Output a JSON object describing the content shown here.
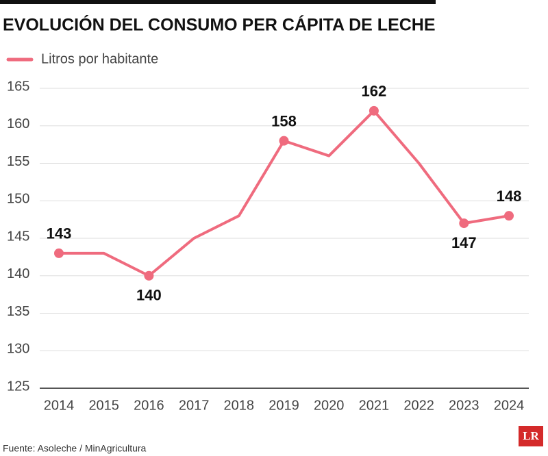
{
  "chart_data": {
    "type": "line",
    "title": "EVOLUCIÓN DEL CONSUMO PER CÁPITA DE LECHE",
    "categories": [
      "2014",
      "2015",
      "2016",
      "2017",
      "2018",
      "2019",
      "2020",
      "2021",
      "2022",
      "2023",
      "2024"
    ],
    "series": [
      {
        "name": "Litros por habitante",
        "color": "#ef6b7e",
        "values": [
          143,
          143,
          140,
          145,
          148,
          158,
          156,
          162,
          155,
          147,
          148
        ],
        "value_labels": [
          "143",
          null,
          "140",
          null,
          null,
          "158",
          null,
          "162",
          null,
          "147",
          "148"
        ]
      }
    ],
    "ylim": [
      125,
      165
    ],
    "yticks": [
      125,
      130,
      135,
      140,
      145,
      150,
      155,
      160,
      165
    ],
    "grid": true,
    "source": "Fuente: Asoleche / MinAgricultura",
    "logo": "LR"
  }
}
